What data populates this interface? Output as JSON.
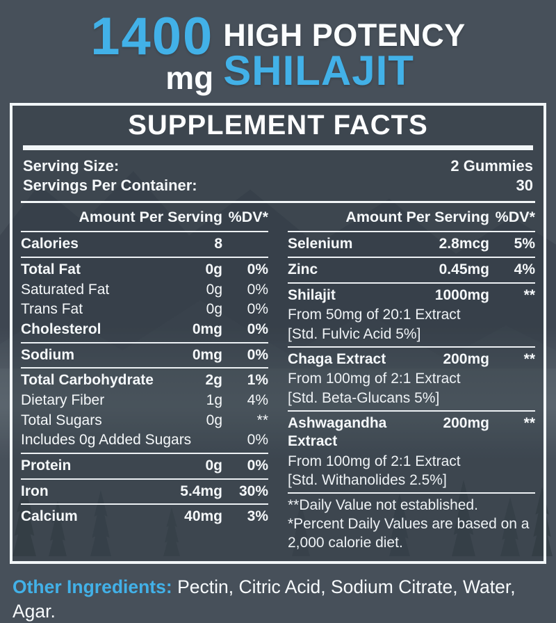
{
  "colors": {
    "accent": "#42b1e8",
    "panel_border": "#f2f6f8",
    "background": "#4a545e",
    "text": "#f5f8fa"
  },
  "hero": {
    "amount": "1400",
    "unit": "mg",
    "tagline": "HIGH POTENCY",
    "product": "SHILAJIT"
  },
  "panel": {
    "title": "SUPPLEMENT FACTS",
    "serving_rows": [
      {
        "label": "Serving Size:",
        "value": "2 Gummies"
      },
      {
        "label": "Servings Per Container:",
        "value": "30"
      }
    ],
    "col_header": {
      "amount": "Amount Per Serving",
      "dv": "%DV*"
    },
    "columns": [
      {
        "rows": [
          {
            "t": "i",
            "b": true,
            "label": "Calories",
            "amount": "8",
            "dv": ""
          },
          {
            "t": "r"
          },
          {
            "t": "i",
            "b": true,
            "label": "Total Fat",
            "amount": "0g",
            "dv": "0%"
          },
          {
            "t": "i",
            "b": false,
            "label": "Saturated Fat",
            "amount": "0g",
            "dv": "0%"
          },
          {
            "t": "i",
            "b": false,
            "label": "Trans Fat",
            "amount": "0g",
            "dv": "0%"
          },
          {
            "t": "i",
            "b": true,
            "label": "Cholesterol",
            "amount": "0mg",
            "dv": "0%"
          },
          {
            "t": "r"
          },
          {
            "t": "i",
            "b": true,
            "label": "Sodium",
            "amount": "0mg",
            "dv": "0%"
          },
          {
            "t": "r"
          },
          {
            "t": "i",
            "b": true,
            "label": "Total Carbohydrate",
            "amount": "2g",
            "dv": "1%"
          },
          {
            "t": "i",
            "b": false,
            "label": "Dietary Fiber",
            "amount": "1g",
            "dv": "4%"
          },
          {
            "t": "i",
            "b": false,
            "label": "Total Sugars",
            "amount": "0g",
            "dv": "**"
          },
          {
            "t": "i",
            "b": false,
            "label": "Includes 0g Added Sugars",
            "amount": "",
            "dv": "0%"
          },
          {
            "t": "r"
          },
          {
            "t": "i",
            "b": true,
            "label": "Protein",
            "amount": "0g",
            "dv": "0%"
          },
          {
            "t": "r"
          },
          {
            "t": "i",
            "b": true,
            "label": "Iron",
            "amount": "5.4mg",
            "dv": "30%"
          },
          {
            "t": "r"
          },
          {
            "t": "i",
            "b": true,
            "label": "Calcium",
            "amount": "40mg",
            "dv": "3%"
          }
        ]
      },
      {
        "rows": [
          {
            "t": "i",
            "b": true,
            "label": "Selenium",
            "amount": "2.8mcg",
            "dv": "5%"
          },
          {
            "t": "r"
          },
          {
            "t": "i",
            "b": true,
            "label": "Zinc",
            "amount": "0.45mg",
            "dv": "4%"
          },
          {
            "t": "r"
          },
          {
            "t": "i",
            "b": true,
            "label": "Shilajit",
            "amount": "1000mg",
            "dv": "**"
          },
          {
            "t": "s",
            "text": "From 50mg of 20:1 Extract"
          },
          {
            "t": "s",
            "text": "[Std. Fulvic Acid 5%]"
          },
          {
            "t": "r"
          },
          {
            "t": "i",
            "b": true,
            "label": "Chaga Extract",
            "amount": "200mg",
            "dv": "**"
          },
          {
            "t": "s",
            "text": "From 100mg of 2:1 Extract"
          },
          {
            "t": "s",
            "text": "[Std. Beta-Glucans 5%]"
          },
          {
            "t": "r"
          },
          {
            "t": "i",
            "b": true,
            "label": "Ashwagandha Extract",
            "amount": "200mg",
            "dv": "**"
          },
          {
            "t": "s",
            "text": "From 100mg of 2:1 Extract"
          },
          {
            "t": "s",
            "text": "[Std. Withanolides 2.5%]"
          },
          {
            "t": "r"
          },
          {
            "t": "s",
            "text": "**Daily Value not established."
          },
          {
            "t": "s",
            "text": "*Percent Daily Values are based on a 2,000 calorie diet."
          }
        ]
      }
    ]
  },
  "other_ingredients": {
    "label": "Other Ingredients:",
    "value": "Pectin, Citric Acid, Sodium Citrate, Water, Agar."
  }
}
